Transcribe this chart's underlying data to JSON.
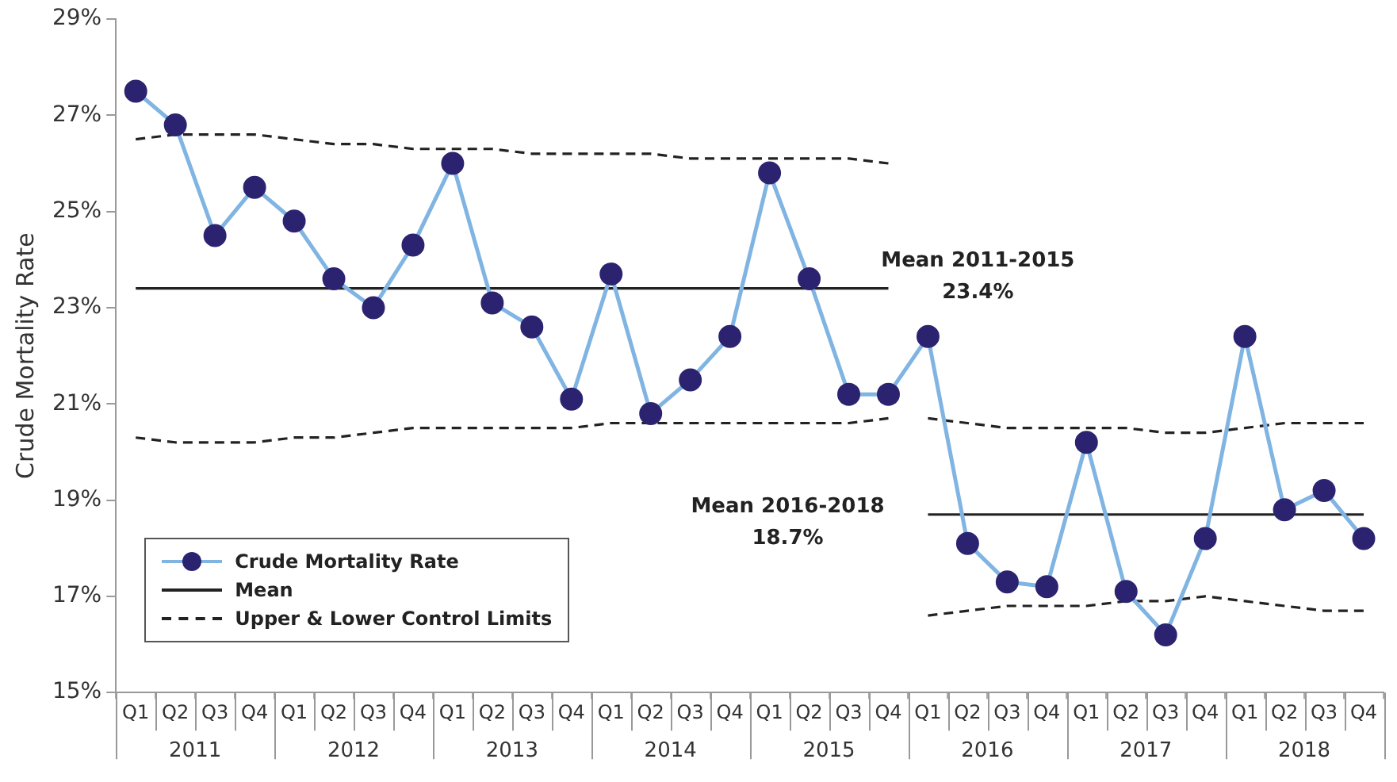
{
  "chart_data": {
    "type": "line",
    "ylabel": "Crude Mortality Rate",
    "categories": [
      "Q1",
      "Q2",
      "Q3",
      "Q4",
      "Q1",
      "Q2",
      "Q3",
      "Q4",
      "Q1",
      "Q2",
      "Q3",
      "Q4",
      "Q1",
      "Q2",
      "Q3",
      "Q4",
      "Q1",
      "Q2",
      "Q3",
      "Q4",
      "Q1",
      "Q2",
      "Q3",
      "Q4",
      "Q1",
      "Q2",
      "Q3",
      "Q4",
      "Q1",
      "Q2",
      "Q3",
      "Q4"
    ],
    "series": [
      {
        "name": "Crude Mortality Rate",
        "color": "#80b4e2",
        "marker": "circle",
        "colors": [
          "#2b2370",
          "#2b2370",
          "#2b2370",
          "#2b2370",
          "#2b2370",
          "#2b2370",
          "#2b2370",
          "#2b2370",
          "#2b2370",
          "#2b2370",
          "#2b2370",
          "#2b2370",
          "#2b2370",
          "#2b2370",
          "#2b2370",
          "#2b2370",
          "#2b2370",
          "#2b2370",
          "#2b2370",
          "#2b2370",
          "#2b2370",
          "#2b2370",
          "#2b2370",
          "#2b2370",
          "#2b2370",
          "#2b2370",
          "#2b2370",
          "#2b2370",
          "#2b2370",
          "#2b2370",
          "#2b2370",
          "#2b2370"
        ],
        "values": [
          27.5,
          26.8,
          24.5,
          25.5,
          24.8,
          23.6,
          23.0,
          24.3,
          26.0,
          23.1,
          22.6,
          21.1,
          23.7,
          20.8,
          21.5,
          22.4,
          25.8,
          23.6,
          21.2,
          21.2,
          22.4,
          18.1,
          17.3,
          17.2,
          20.2,
          17.1,
          16.2,
          18.2,
          22.4,
          18.8,
          19.2,
          18.2
        ]
      },
      {
        "name": "Mean",
        "color": "#222222",
        "marker": "none",
        "line_style": "solid",
        "values": [
          23.4,
          23.4,
          23.4,
          23.4,
          23.4,
          23.4,
          23.4,
          23.4,
          23.4,
          23.4,
          23.4,
          23.4,
          23.4,
          23.4,
          23.4,
          23.4,
          23.4,
          23.4,
          23.4,
          23.4,
          null,
          null,
          null,
          null,
          null,
          null,
          null,
          null,
          null,
          null,
          null,
          null
        ]
      },
      {
        "color": "#222222",
        "marker": "none",
        "line_style": "solid",
        "values": [
          null,
          null,
          null,
          null,
          null,
          null,
          null,
          null,
          null,
          null,
          null,
          null,
          null,
          null,
          null,
          null,
          null,
          null,
          null,
          null,
          18.7,
          18.7,
          18.7,
          18.7,
          18.7,
          18.7,
          18.7,
          18.7,
          18.7,
          18.7,
          18.7,
          18.7
        ]
      },
      {
        "name": "Upper & Lower Control Limits",
        "color": "#222222",
        "marker": "none",
        "line_style": "dashed",
        "values": [
          26.5,
          26.6,
          26.6,
          26.6,
          26.5,
          26.4,
          26.4,
          26.3,
          26.3,
          26.3,
          26.2,
          26.2,
          26.2,
          26.2,
          26.1,
          26.1,
          26.1,
          26.1,
          26.1,
          26.0,
          null,
          null,
          null,
          null,
          null,
          null,
          null,
          null,
          null,
          null,
          null,
          null
        ]
      },
      {
        "color": "#222222",
        "marker": "none",
        "line_style": "dashed",
        "values": [
          20.3,
          20.2,
          20.2,
          20.2,
          20.3,
          20.3,
          20.4,
          20.5,
          20.5,
          20.5,
          20.5,
          20.5,
          20.6,
          20.6,
          20.6,
          20.6,
          20.6,
          20.6,
          20.6,
          20.7,
          null,
          null,
          null,
          null,
          null,
          null,
          null,
          null,
          null,
          null,
          null,
          null
        ]
      },
      {
        "color": "#222222",
        "marker": "none",
        "line_style": "dashed",
        "values": [
          null,
          null,
          null,
          null,
          null,
          null,
          null,
          null,
          null,
          null,
          null,
          null,
          null,
          null,
          null,
          null,
          null,
          null,
          null,
          null,
          20.7,
          20.6,
          20.5,
          20.5,
          20.5,
          20.5,
          20.4,
          20.4,
          20.5,
          20.6,
          20.6,
          20.6
        ]
      },
      {
        "color": "#222222",
        "marker": "none",
        "line_style": "dashed",
        "values": [
          null,
          null,
          null,
          null,
          null,
          null,
          null,
          null,
          null,
          null,
          null,
          null,
          null,
          null,
          null,
          null,
          null,
          null,
          null,
          null,
          16.6,
          16.7,
          16.8,
          16.8,
          16.8,
          16.9,
          16.9,
          17.0,
          16.9,
          16.8,
          16.7,
          16.7
        ]
      }
    ],
    "ylim": [
      15,
      29
    ],
    "yticks": [
      {
        "value": 15,
        "label": "15%"
      },
      {
        "value": 17,
        "label": "17%"
      },
      {
        "value": 19,
        "label": "19%"
      },
      {
        "value": 21,
        "label": "21%"
      },
      {
        "value": 23,
        "label": "23%"
      },
      {
        "value": 25,
        "label": "25%"
      },
      {
        "value": 27,
        "label": "27%"
      },
      {
        "value": 29,
        "label": "29%"
      }
    ],
    "legend": "bottom left",
    "annotations": [
      "Mean 2011-2015 23.4%",
      "Mean 2016-2018 18.7%",
      "2011",
      "2012",
      "2013",
      "2014",
      "2015",
      "2016",
      "2017",
      "2018"
    ]
  }
}
